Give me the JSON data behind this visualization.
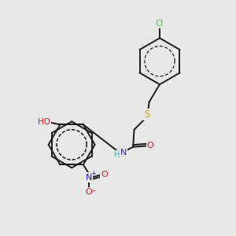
{
  "bg_color": "#e8e8e8",
  "atom_colors": {
    "C": "#000000",
    "H": "#5fa8a8",
    "N": "#2222cc",
    "O": "#cc2222",
    "S": "#ccaa00",
    "Cl": "#44bb44"
  },
  "bond_color": "#1a1a1a",
  "bond_width": 1.4
}
